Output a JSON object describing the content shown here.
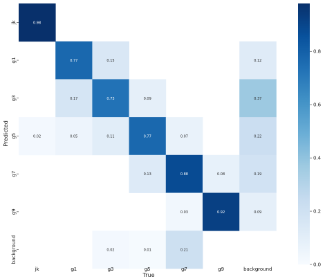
{
  "chart_data": {
    "type": "heatmap",
    "title": "",
    "xlabel": "True",
    "ylabel": "Predicted",
    "x_categories": [
      "jk",
      "g1",
      "g3",
      "g5",
      "g7",
      "g9",
      "background"
    ],
    "y_categories": [
      "jk",
      "g1",
      "g3",
      "g5",
      "g7",
      "g9",
      "background"
    ],
    "cells": [
      {
        "row": 0,
        "col": 0,
        "value": 0.98,
        "label": "0.98"
      },
      {
        "row": 1,
        "col": 1,
        "value": 0.77,
        "label": "0.77"
      },
      {
        "row": 1,
        "col": 2,
        "value": 0.15,
        "label": "0.15"
      },
      {
        "row": 1,
        "col": 6,
        "value": 0.12,
        "label": "0.12"
      },
      {
        "row": 2,
        "col": 1,
        "value": 0.17,
        "label": "0.17"
      },
      {
        "row": 2,
        "col": 2,
        "value": 0.73,
        "label": "0.73"
      },
      {
        "row": 2,
        "col": 3,
        "value": 0.09,
        "label": "0.09"
      },
      {
        "row": 2,
        "col": 6,
        "value": 0.37,
        "label": "0.37"
      },
      {
        "row": 3,
        "col": 0,
        "value": 0.02,
        "label": "0.02"
      },
      {
        "row": 3,
        "col": 1,
        "value": 0.05,
        "label": "0.05"
      },
      {
        "row": 3,
        "col": 2,
        "value": 0.11,
        "label": "0.11"
      },
      {
        "row": 3,
        "col": 3,
        "value": 0.77,
        "label": "0.77"
      },
      {
        "row": 3,
        "col": 4,
        "value": 0.07,
        "label": "0.07"
      },
      {
        "row": 3,
        "col": 6,
        "value": 0.22,
        "label": "0.22"
      },
      {
        "row": 4,
        "col": 3,
        "value": 0.13,
        "label": "0.13"
      },
      {
        "row": 4,
        "col": 4,
        "value": 0.88,
        "label": "0.88"
      },
      {
        "row": 4,
        "col": 5,
        "value": 0.08,
        "label": "0.08"
      },
      {
        "row": 4,
        "col": 6,
        "value": 0.19,
        "label": "0.19"
      },
      {
        "row": 5,
        "col": 4,
        "value": 0.03,
        "label": "0.03"
      },
      {
        "row": 5,
        "col": 5,
        "value": 0.92,
        "label": "0.92"
      },
      {
        "row": 5,
        "col": 6,
        "value": 0.09,
        "label": "0.09"
      },
      {
        "row": 6,
        "col": 2,
        "value": 0.02,
        "label": "0.02"
      },
      {
        "row": 6,
        "col": 3,
        "value": 0.01,
        "label": "0.01"
      },
      {
        "row": 6,
        "col": 4,
        "value": 0.21,
        "label": "0.21"
      }
    ],
    "colorbar": {
      "colormap": "Blues",
      "vmin": 0.0,
      "vmax": 0.98,
      "ticks": [
        0.0,
        0.2,
        0.4,
        0.6,
        0.8
      ],
      "tick_labels": [
        "0.0",
        "0.2",
        "0.4",
        "0.6",
        "0.8"
      ]
    },
    "grid": false,
    "legend": "colorbar-right"
  }
}
